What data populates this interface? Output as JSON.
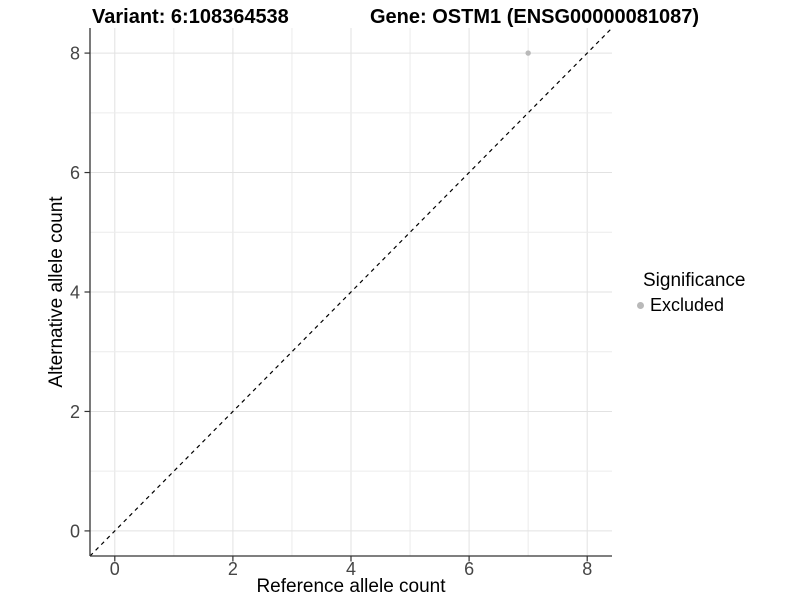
{
  "chart_data": {
    "type": "scatter",
    "title_left": "Variant: 6:108364538",
    "title_right": "Gene: OSTM1 (ENSG00000081087)",
    "xlabel": "Reference allele count",
    "ylabel": "Alternative allele count",
    "xlim": [
      -0.42,
      8.42
    ],
    "ylim": [
      -0.42,
      8.42
    ],
    "xticks": [
      0,
      2,
      4,
      6,
      8
    ],
    "yticks": [
      0,
      2,
      4,
      6,
      8
    ],
    "grid_x": [
      0,
      1,
      2,
      3,
      4,
      5,
      6,
      7,
      8
    ],
    "grid_y": [
      0,
      1,
      2,
      3,
      4,
      5,
      6,
      7,
      8
    ],
    "points": [
      {
        "x": 7,
        "y": 8,
        "series": "Excluded"
      }
    ],
    "identity_line": {
      "slope": 1,
      "intercept": 0,
      "style": "dashed",
      "color": "#000000"
    },
    "legend": {
      "title": "Significance",
      "position": "right",
      "items": [
        {
          "label": "Excluded",
          "color": "#b9b9b9"
        }
      ]
    },
    "colors": {
      "point_excluded": "#b9b9b9",
      "grid_major": "#e2e2e2",
      "grid_minor": "#ececec",
      "axis_line": "#333333",
      "tick_label": "#454545",
      "background": "#ffffff"
    }
  }
}
